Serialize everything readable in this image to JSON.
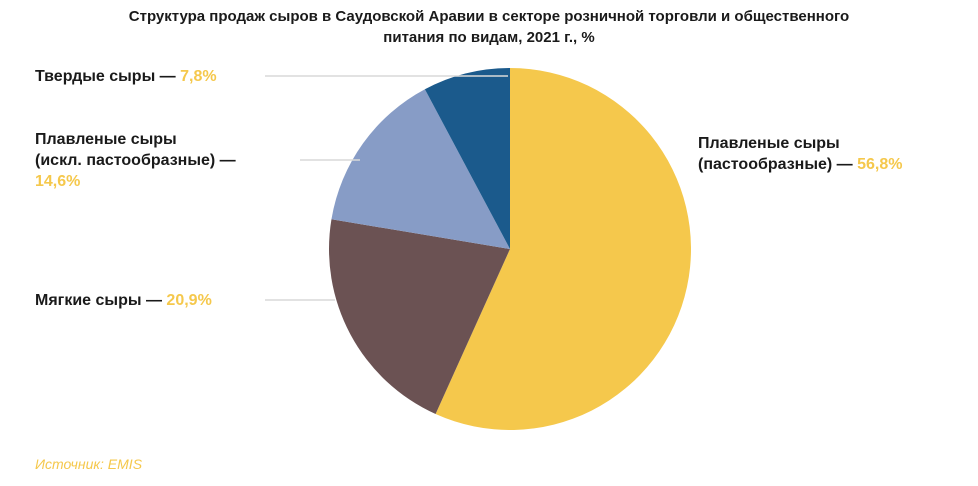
{
  "title_line1": "Структура продаж сыров в Саудовской Аравии в секторе розничной торговли и общественного",
  "title_line2": "питания по видам, 2021 г., %",
  "source": "Источник: EMIS",
  "chart_data": {
    "type": "pie",
    "title": "Структура продаж сыров в Саудовской Аравии в секторе розничной торговли и общественного питания по видам, 2021 г., %",
    "slices": [
      {
        "label_lines": [
          "Плавленые сыры",
          "(пастообразные) —"
        ],
        "pct_text": "56,8%",
        "value": 56.8,
        "color": "#f5c84c"
      },
      {
        "label_lines": [
          "Мягкие сыры —"
        ],
        "pct_text": "20,9%",
        "value": 20.9,
        "color": "#6b5253"
      },
      {
        "label_lines": [
          "Плавленые сыры",
          "(искл. пастообразные) —"
        ],
        "pct_text": "14,6%",
        "value": 14.6,
        "color": "#879cc6"
      },
      {
        "label_lines": [
          "Твердые сыры —"
        ],
        "pct_text": "7,8%",
        "value": 7.8,
        "color": "#1b5a8c"
      }
    ]
  }
}
